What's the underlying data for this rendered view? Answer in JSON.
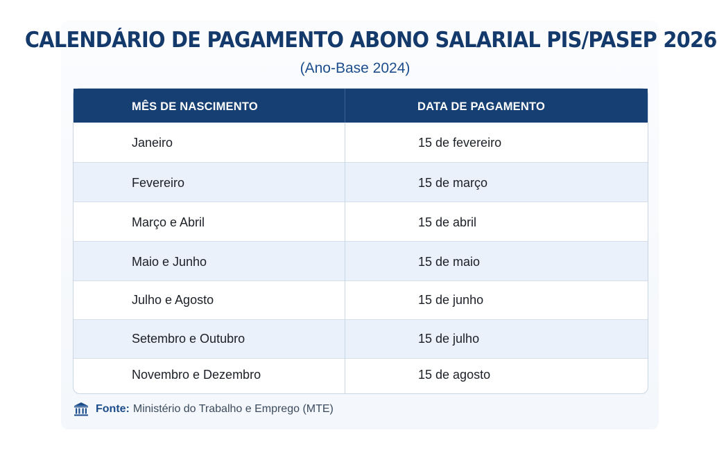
{
  "title": "CALENDÁRIO DE PAGAMENTO ABONO SALARIAL PIS/PASEP 2026",
  "subtitle": "(Ano-Base 2024)",
  "table": {
    "headers": [
      "MÊS DE NASCIMENTO",
      "DATA DE PAGAMENTO"
    ],
    "rows": [
      {
        "month": "Janeiro",
        "date": "15 de fevereiro"
      },
      {
        "month": "Fevereiro",
        "date": "15 de março"
      },
      {
        "month": "Março e Abril",
        "date": "15 de abril"
      },
      {
        "month": "Maio e Junho",
        "date": "15 de maio"
      },
      {
        "month": "Julho e Agosto",
        "date": "15 de junho"
      },
      {
        "month": "Setembro e Outubro",
        "date": "15 de julho"
      },
      {
        "month": "Novembro e Dezembro",
        "date": "15 de agosto"
      }
    ]
  },
  "source": {
    "icon": "bank-building-icon",
    "label": "Fonte:",
    "text": "Ministério do Trabalho e Emprego (MTE)"
  },
  "colors": {
    "header_bg": "#163f73",
    "title": "#143a6b",
    "subtitle": "#1c4d8c",
    "row_alt": "#eaf1fa"
  }
}
